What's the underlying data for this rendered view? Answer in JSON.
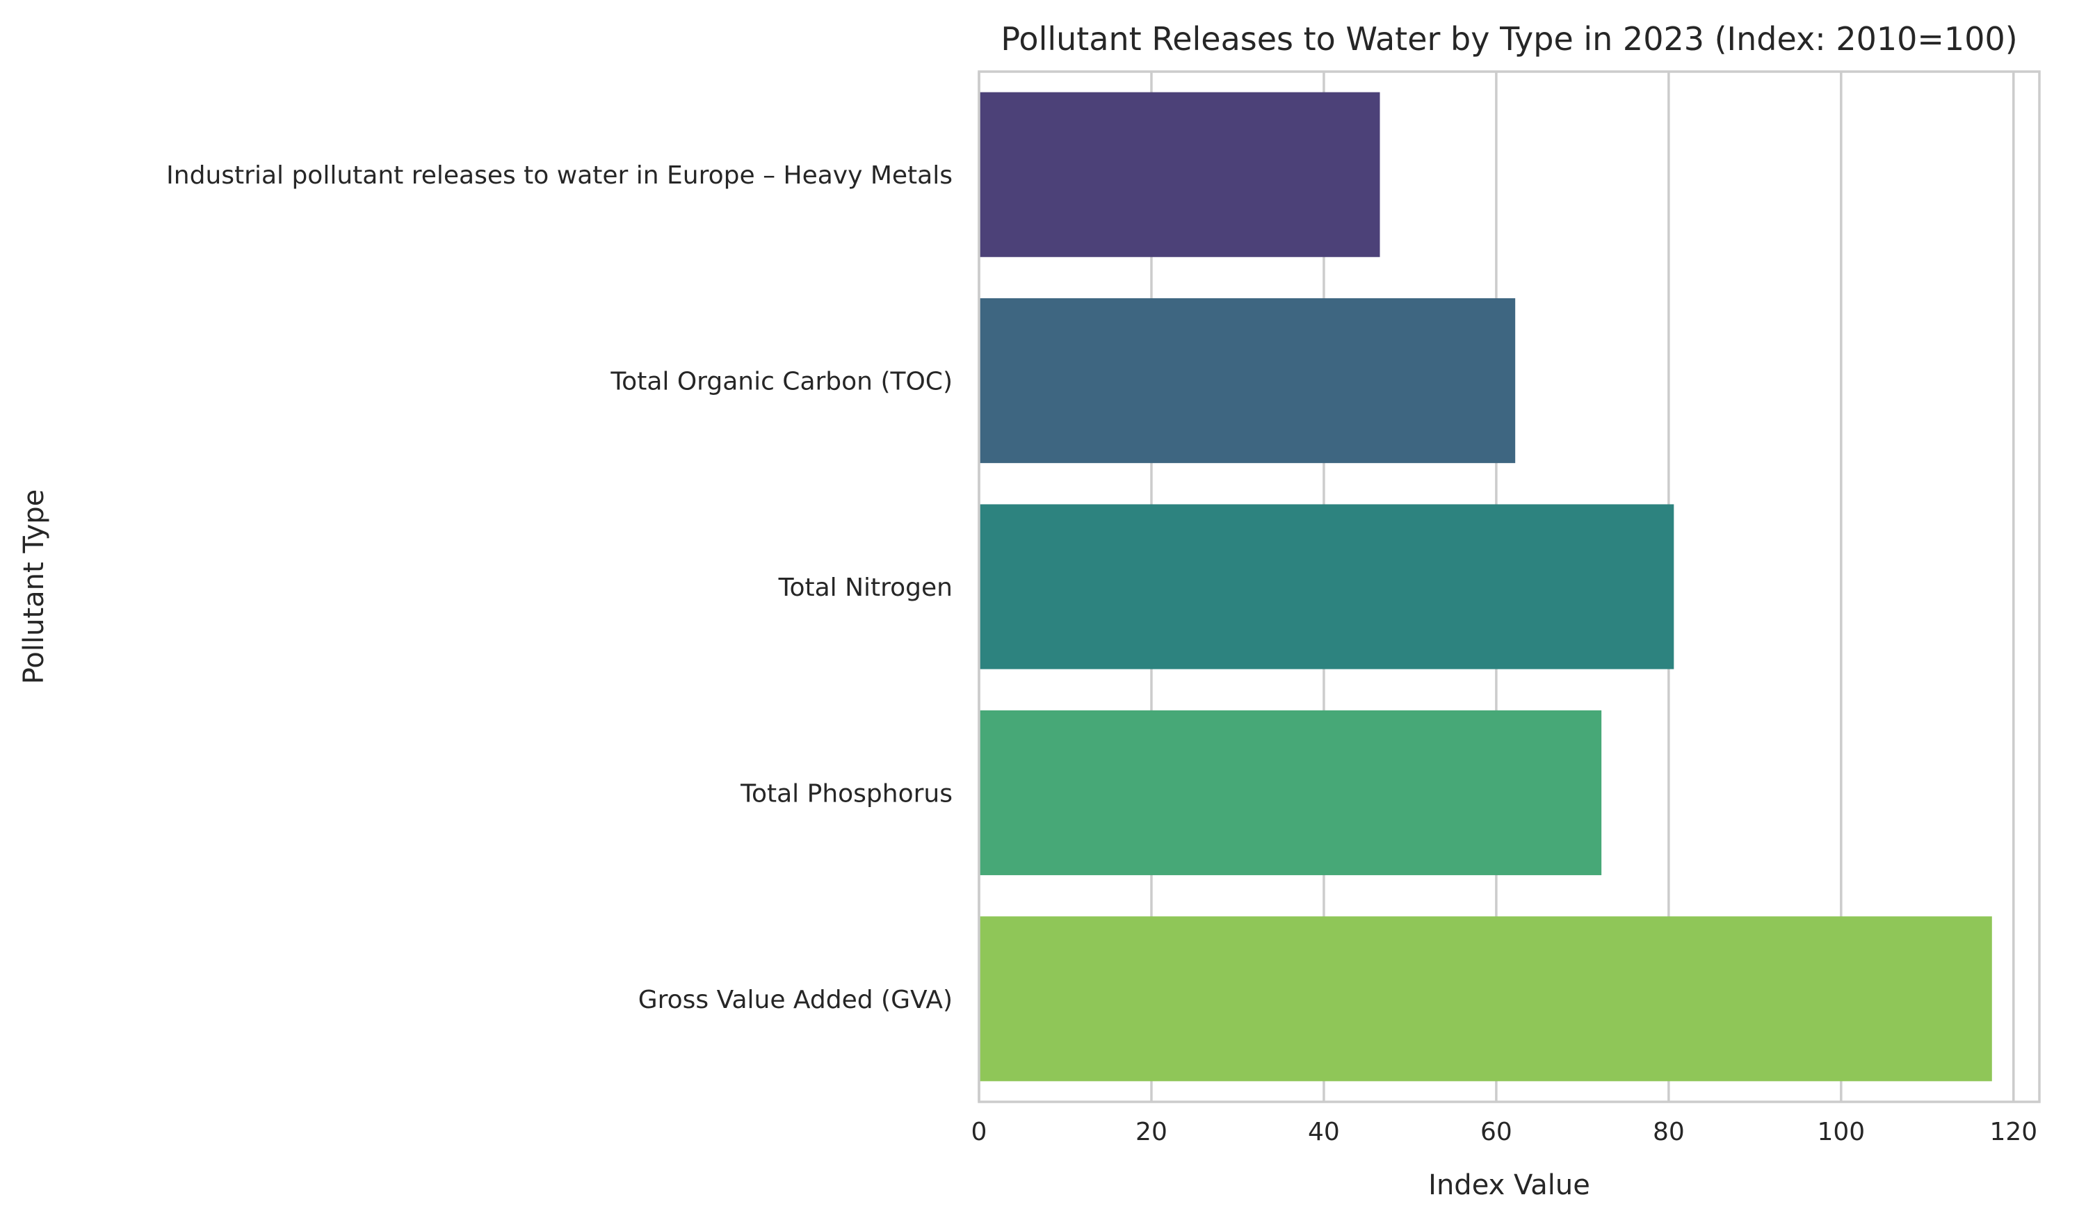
{
  "chart_data": {
    "type": "bar",
    "orientation": "horizontal",
    "title": "Pollutant Releases to Water by Type in 2023 (Index: 2010=100)",
    "xlabel": "Index Value",
    "ylabel": "Pollutant Type",
    "xlim": [
      0,
      123
    ],
    "x_ticks": [
      0,
      20,
      40,
      60,
      80,
      100,
      120
    ],
    "grid": true,
    "categories": [
      "Industrial pollutant releases to water in Europe – Heavy Metals",
      "Total Organic Carbon (TOC)",
      "Total Nitrogen",
      "Total Phosphorus",
      "Gross Value Added (GVA)"
    ],
    "values": [
      46.5,
      62.2,
      80.6,
      72.2,
      117.5
    ],
    "colors": [
      "#4c4178",
      "#3e6681",
      "#2d837f",
      "#47a877",
      "#8fc658"
    ]
  }
}
